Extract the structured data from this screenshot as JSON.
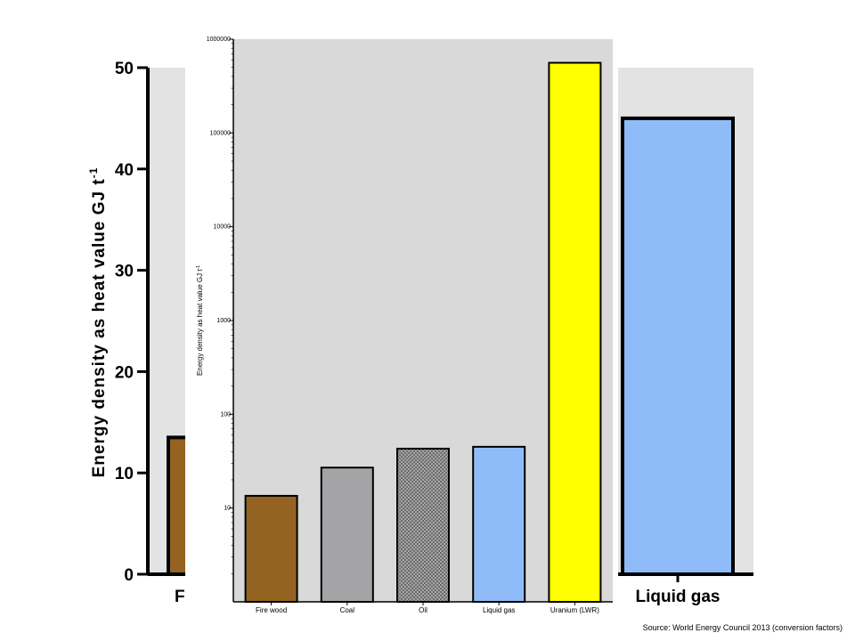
{
  "chart_data": [
    {
      "type": "bar",
      "scale": "linear",
      "categories": [
        "Fire wood",
        "Coal",
        "Oil",
        "Liquid gas"
      ],
      "visible_category_labels": [
        "Fire wo",
        "Liquid gas"
      ],
      "values": [
        13.5,
        27,
        43,
        45
      ],
      "ylabel": "Energy density as heat value GJ t",
      "ylabel_superscript": "-1",
      "ylim": [
        0,
        50
      ],
      "yticks": [
        0,
        10,
        20,
        30,
        40,
        50
      ],
      "grid": false,
      "background": "#e3e3e3",
      "colors": [
        "#946322",
        "#a4a3a6",
        "#7a7a7a",
        "#8fbcf9"
      ]
    },
    {
      "type": "bar",
      "scale": "log",
      "categories": [
        "Fire wood",
        "Coal",
        "Oil",
        "Liquid gas",
        "Uranium (LWR)"
      ],
      "values": [
        13.5,
        27,
        43,
        45,
        560000
      ],
      "ylabel": "Energy density as heat value GJ t",
      "ylabel_superscript": "-1",
      "ylim": [
        1,
        1000000
      ],
      "yticks": [
        10,
        100,
        1000,
        10000,
        100000,
        1000000
      ],
      "ytick_labels": [
        "10",
        "100",
        "1000",
        "10000",
        "100000",
        "1000000"
      ],
      "grid": false,
      "background": "#d9d9d9",
      "colors": [
        "#946322",
        "#a4a3a6",
        "#8c8c8c",
        "#8fbcf9",
        "#ffff00"
      ]
    }
  ],
  "source": "Source: World Energy Council 2013 (conversion factors)"
}
